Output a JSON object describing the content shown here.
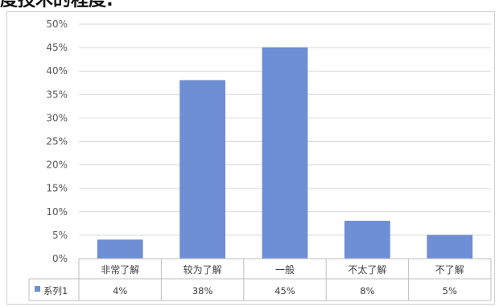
{
  "heading": "度技术的程度:",
  "colors": {
    "bar": "#6E8FD5",
    "bar_edge": "#5B7CC6",
    "grid": "#D9D9D9",
    "table_border": "#BFBFBF"
  },
  "chart_data": {
    "type": "bar",
    "categories": [
      "非常了解",
      "较为了解",
      "一般",
      "不太了解",
      "不了解"
    ],
    "series": [
      {
        "name": "系列1",
        "values": [
          4,
          38,
          45,
          8,
          5
        ]
      }
    ],
    "data_table": [
      "4%",
      "38%",
      "45%",
      "8%",
      "5%"
    ],
    "ylim": [
      0,
      50
    ],
    "y_ticks": [
      "0%",
      "5%",
      "10%",
      "15%",
      "20%",
      "25%",
      "30%",
      "35%",
      "40%",
      "45%",
      "50%"
    ],
    "grid": true,
    "legend_position": "data-table"
  }
}
